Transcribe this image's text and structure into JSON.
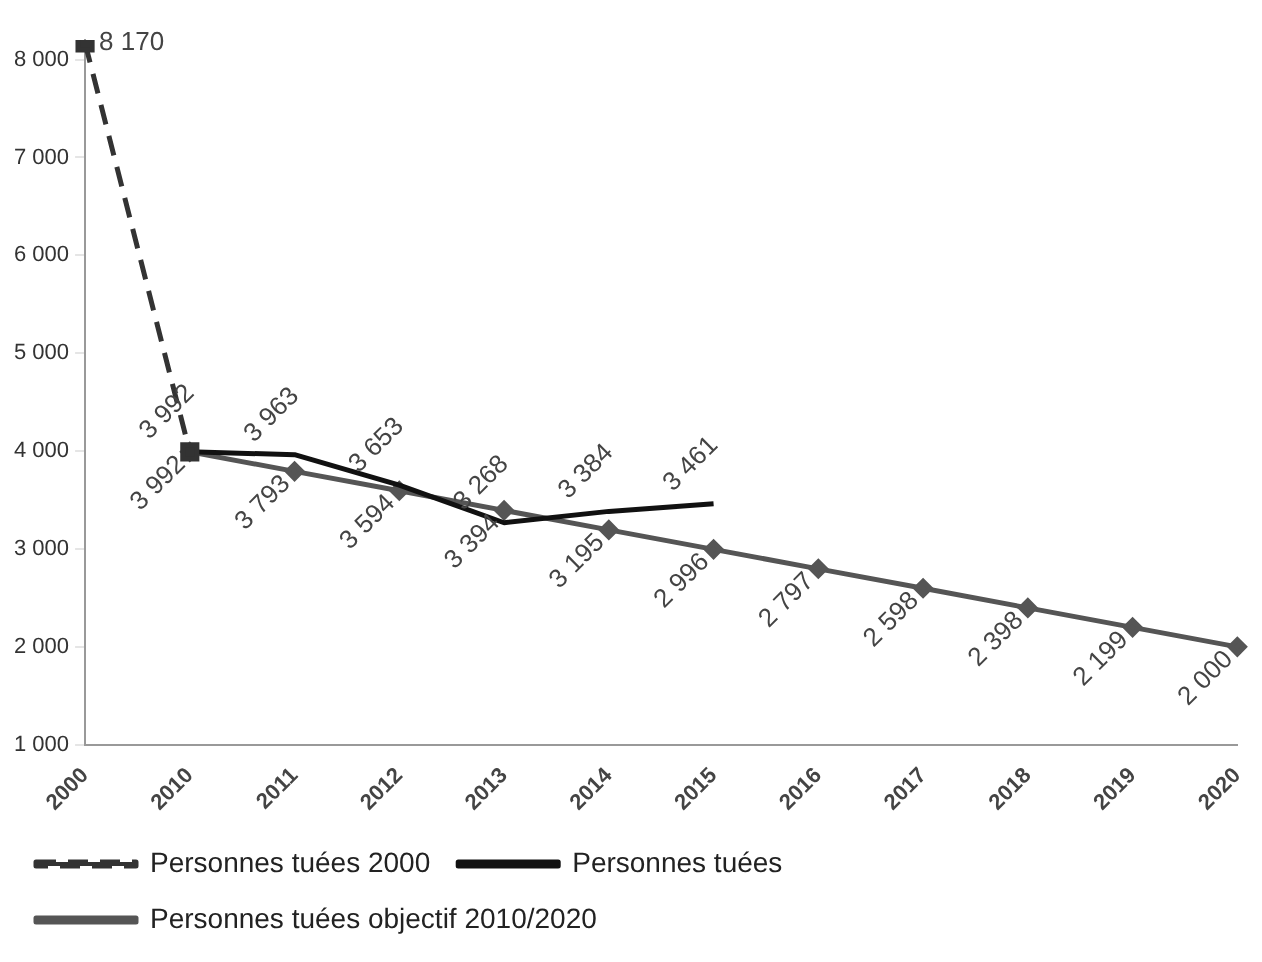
{
  "chart_data": {
    "type": "line",
    "categories": [
      "2000",
      "2010",
      "2011",
      "2012",
      "2013",
      "2014",
      "2015",
      "2016",
      "2017",
      "2018",
      "2019",
      "2020"
    ],
    "series": [
      {
        "name": "Personnes tuées 2000",
        "color": "#333333",
        "line_style": "dashed",
        "marker": "square",
        "values": [
          8170,
          3992,
          null,
          null,
          null,
          null,
          null,
          null,
          null,
          null,
          null,
          null
        ],
        "value_labels": [
          "8 170",
          null,
          null,
          null,
          null,
          null,
          null,
          null,
          null,
          null,
          null,
          null
        ]
      },
      {
        "name": "Personnes tuées",
        "color": "#111111",
        "line_style": "solid",
        "marker": "none",
        "values": [
          null,
          3992,
          3963,
          3653,
          3268,
          3384,
          3461,
          null,
          null,
          null,
          null,
          null
        ],
        "value_labels": [
          null,
          "3 992",
          "3 963",
          "3 653",
          "3 268",
          "3 384",
          "3 461",
          null,
          null,
          null,
          null,
          null
        ]
      },
      {
        "name": "Personnes tuées objectif 2010/2020",
        "color": "#555555",
        "line_style": "solid",
        "marker": "diamond",
        "values": [
          null,
          3992,
          3793,
          3594,
          3394,
          3195,
          2996,
          2797,
          2598,
          2398,
          2199,
          2000
        ],
        "value_labels": [
          null,
          "3 992",
          "3 793",
          "3 594",
          "3 394",
          "3 195",
          "2 996",
          "2 797",
          "2 598",
          "2 398",
          "2 199",
          "2 000"
        ]
      }
    ],
    "ylim": [
      1000,
      8200
    ],
    "yticks": [
      {
        "value": 1000,
        "label": "1 000"
      },
      {
        "value": 2000,
        "label": "2 000"
      },
      {
        "value": 3000,
        "label": "3 000"
      },
      {
        "value": 4000,
        "label": "4 000"
      },
      {
        "value": 5000,
        "label": "5 000"
      },
      {
        "value": 6000,
        "label": "6 000"
      },
      {
        "value": 7000,
        "label": "7 000"
      },
      {
        "value": 8000,
        "label": "8 000"
      }
    ],
    "grid": false,
    "legend": "bottom"
  }
}
